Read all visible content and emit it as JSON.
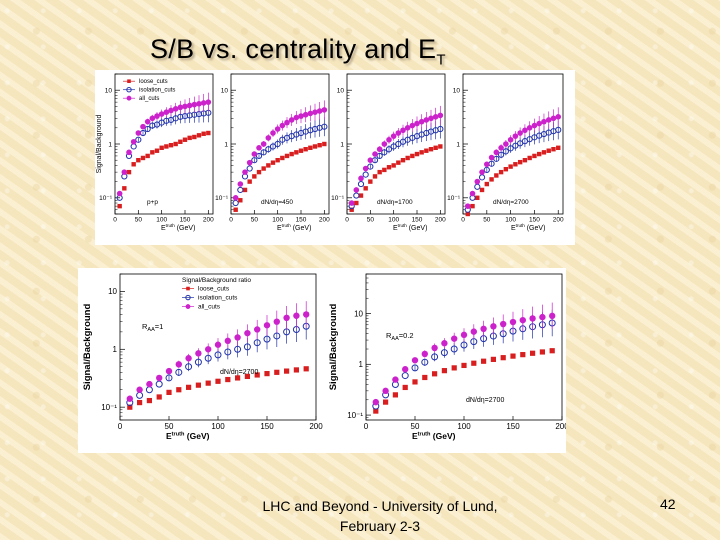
{
  "slide": {
    "title_main": "S/B vs. centrality and E",
    "title_sub": "T",
    "footer_line1": "LHC and Beyond - University of Lund,",
    "footer_line2": "February 2-3",
    "page_number": "42"
  },
  "colors": {
    "loose": "#d81e1e",
    "isolation": "#2233aa",
    "all": "#cc22cc",
    "background": "#f7e9c4"
  },
  "chart_data": [
    {
      "type": "scatter",
      "name": "pp",
      "yscale": "log",
      "ylim": [
        0.05,
        20
      ],
      "xlim": [
        0,
        210
      ],
      "ylabel": "Signal/Background",
      "xlabel_main": "E",
      "xlabel_sup": "truth",
      "xlabel_unit": "(GeV)",
      "xticks": [
        0,
        50,
        100,
        150,
        200
      ],
      "ytick_labels": [
        "10",
        "1",
        "10⁻¹"
      ],
      "annotation": "p+p",
      "legend": [
        "loose_cuts",
        "isolation_cuts",
        "all_cuts"
      ],
      "x": [
        10,
        20,
        30,
        40,
        50,
        60,
        70,
        80,
        90,
        100,
        110,
        120,
        130,
        140,
        150,
        160,
        170,
        180,
        190,
        200
      ],
      "series": [
        {
          "name": "loose_cuts",
          "values": [
            0.07,
            0.15,
            0.3,
            0.42,
            0.5,
            0.55,
            0.6,
            0.7,
            0.75,
            0.85,
            0.9,
            0.95,
            1.0,
            1.1,
            1.2,
            1.3,
            1.35,
            1.45,
            1.55,
            1.6
          ]
        },
        {
          "name": "isolation_cuts",
          "values": [
            0.1,
            0.25,
            0.6,
            0.9,
            1.2,
            1.6,
            1.9,
            2.2,
            2.3,
            2.5,
            2.7,
            2.8,
            3.0,
            3.2,
            3.3,
            3.4,
            3.5,
            3.6,
            3.7,
            3.8
          ]
        },
        {
          "name": "all_cuts",
          "values": [
            0.12,
            0.3,
            0.7,
            1.1,
            1.6,
            2.1,
            2.6,
            3.0,
            3.3,
            3.6,
            3.9,
            4.2,
            4.5,
            4.8,
            5.0,
            5.2,
            5.4,
            5.6,
            5.8,
            6.0
          ]
        }
      ]
    },
    {
      "type": "scatter",
      "name": "dNdeta450",
      "yscale": "log",
      "ylim": [
        0.05,
        20
      ],
      "xlim": [
        0,
        210
      ],
      "xlabel_main": "E",
      "xlabel_sup": "truth",
      "xlabel_unit": "(GeV)",
      "xticks": [
        0,
        50,
        100,
        150,
        200
      ],
      "ytick_labels": [
        "10",
        "1",
        "10⁻¹"
      ],
      "annotation": "dN/dη=450",
      "x": [
        10,
        20,
        30,
        40,
        50,
        60,
        70,
        80,
        90,
        100,
        110,
        120,
        130,
        140,
        150,
        160,
        170,
        180,
        190,
        200
      ],
      "series": [
        {
          "name": "loose_cuts",
          "values": [
            0.06,
            0.09,
            0.14,
            0.2,
            0.25,
            0.3,
            0.35,
            0.4,
            0.45,
            0.5,
            0.55,
            0.6,
            0.65,
            0.7,
            0.75,
            0.8,
            0.85,
            0.9,
            0.95,
            1.0
          ]
        },
        {
          "name": "isolation_cuts",
          "values": [
            0.08,
            0.14,
            0.25,
            0.35,
            0.5,
            0.6,
            0.7,
            0.8,
            0.9,
            1.0,
            1.2,
            1.3,
            1.4,
            1.5,
            1.6,
            1.7,
            1.8,
            1.9,
            2.0,
            2.1
          ]
        },
        {
          "name": "all_cuts",
          "values": [
            0.1,
            0.18,
            0.3,
            0.45,
            0.65,
            0.85,
            1.0,
            1.3,
            1.6,
            1.9,
            2.2,
            2.5,
            2.8,
            3.1,
            3.3,
            3.5,
            3.7,
            3.9,
            4.1,
            4.3
          ]
        }
      ]
    },
    {
      "type": "scatter",
      "name": "dNdeta1700",
      "yscale": "log",
      "ylim": [
        0.05,
        20
      ],
      "xlim": [
        0,
        210
      ],
      "xlabel_main": "E",
      "xlabel_sup": "truth",
      "xlabel_unit": "(GeV)",
      "xticks": [
        0,
        50,
        100,
        150,
        200
      ],
      "ytick_labels": [
        "10",
        "1",
        "10⁻¹"
      ],
      "annotation": "dN/dη=1700",
      "x": [
        10,
        20,
        30,
        40,
        50,
        60,
        70,
        80,
        90,
        100,
        110,
        120,
        130,
        140,
        150,
        160,
        170,
        180,
        190,
        200
      ],
      "series": [
        {
          "name": "loose_cuts",
          "values": [
            0.06,
            0.08,
            0.11,
            0.15,
            0.2,
            0.25,
            0.3,
            0.33,
            0.37,
            0.4,
            0.45,
            0.5,
            0.55,
            0.6,
            0.65,
            0.7,
            0.75,
            0.8,
            0.85,
            0.9
          ]
        },
        {
          "name": "isolation_cuts",
          "values": [
            0.07,
            0.11,
            0.18,
            0.27,
            0.38,
            0.5,
            0.6,
            0.7,
            0.8,
            0.9,
            1.0,
            1.1,
            1.2,
            1.3,
            1.4,
            1.5,
            1.6,
            1.7,
            1.8,
            1.9
          ]
        },
        {
          "name": "all_cuts",
          "values": [
            0.08,
            0.14,
            0.23,
            0.35,
            0.5,
            0.65,
            0.8,
            1.0,
            1.2,
            1.4,
            1.6,
            1.8,
            2.0,
            2.2,
            2.4,
            2.6,
            2.8,
            3.0,
            3.2,
            3.4
          ]
        }
      ]
    },
    {
      "type": "scatter",
      "name": "dNdeta2700",
      "yscale": "log",
      "ylim": [
        0.05,
        20
      ],
      "xlim": [
        0,
        210
      ],
      "xlabel_main": "E",
      "xlabel_sup": "truth",
      "xlabel_unit": "(GeV)",
      "xticks": [
        0,
        50,
        100,
        150,
        200
      ],
      "ytick_labels": [
        "10",
        "1",
        "10⁻¹"
      ],
      "annotation": "dN/dη=2700",
      "x": [
        10,
        20,
        30,
        40,
        50,
        60,
        70,
        80,
        90,
        100,
        110,
        120,
        130,
        140,
        150,
        160,
        170,
        180,
        190,
        200
      ],
      "series": [
        {
          "name": "loose_cuts",
          "values": [
            0.05,
            0.07,
            0.1,
            0.14,
            0.18,
            0.22,
            0.26,
            0.3,
            0.34,
            0.38,
            0.42,
            0.46,
            0.5,
            0.55,
            0.6,
            0.65,
            0.7,
            0.75,
            0.8,
            0.85
          ]
        },
        {
          "name": "isolation_cuts",
          "values": [
            0.06,
            0.1,
            0.16,
            0.24,
            0.33,
            0.43,
            0.53,
            0.63,
            0.73,
            0.83,
            0.93,
            1.03,
            1.13,
            1.23,
            1.33,
            1.43,
            1.53,
            1.63,
            1.73,
            1.83
          ]
        },
        {
          "name": "all_cuts",
          "values": [
            0.07,
            0.12,
            0.2,
            0.3,
            0.42,
            0.56,
            0.7,
            0.85,
            1.0,
            1.2,
            1.4,
            1.6,
            1.8,
            2.0,
            2.2,
            2.4,
            2.6,
            2.8,
            3.0,
            3.2
          ]
        }
      ]
    },
    {
      "type": "scatter",
      "name": "RAA1",
      "yscale": "log",
      "ylim": [
        0.06,
        20
      ],
      "xlim": [
        0,
        200
      ],
      "ylabel": "Signal/Background",
      "xlabel_main": "E",
      "xlabel_sup": "truth",
      "xlabel_unit": "(GeV)",
      "xticks": [
        0,
        50,
        100,
        150,
        200
      ],
      "ytick_labels": [
        "10",
        "1",
        "10⁻¹"
      ],
      "annotation": "R",
      "annotation_sub": "AA",
      "annotation_value": "=1",
      "annotation2": "dN/dη=2700",
      "legend_title": "Signal/Background ratio",
      "legend": [
        "loose_cuts",
        "isolation_cuts",
        "all_cuts"
      ],
      "x": [
        10,
        20,
        30,
        40,
        50,
        60,
        70,
        80,
        90,
        100,
        110,
        120,
        130,
        140,
        150,
        160,
        170,
        180,
        190
      ],
      "series": [
        {
          "name": "loose_cuts",
          "values": [
            0.1,
            0.12,
            0.13,
            0.15,
            0.18,
            0.2,
            0.22,
            0.24,
            0.26,
            0.28,
            0.3,
            0.32,
            0.34,
            0.36,
            0.38,
            0.4,
            0.42,
            0.44,
            0.46
          ]
        },
        {
          "name": "isolation_cuts",
          "values": [
            0.12,
            0.16,
            0.2,
            0.25,
            0.32,
            0.4,
            0.5,
            0.6,
            0.7,
            0.8,
            0.9,
            1.0,
            1.1,
            1.3,
            1.5,
            1.7,
            2.0,
            2.2,
            2.5
          ]
        },
        {
          "name": "all_cuts",
          "values": [
            0.14,
            0.2,
            0.25,
            0.32,
            0.42,
            0.55,
            0.7,
            0.85,
            1.0,
            1.2,
            1.4,
            1.6,
            1.9,
            2.2,
            2.6,
            3.0,
            3.5,
            3.8,
            4.0
          ]
        }
      ]
    },
    {
      "type": "scatter",
      "name": "RAA02",
      "yscale": "log",
      "ylim": [
        0.08,
        60
      ],
      "xlim": [
        0,
        200
      ],
      "ylabel": "Signal/Background",
      "xlabel_main": "E",
      "xlabel_sup": "truth",
      "xlabel_unit": "(GeV)",
      "xticks": [
        0,
        50,
        100,
        150,
        200
      ],
      "ytick_labels": [
        "10",
        "1",
        "10⁻¹"
      ],
      "annotation": "R",
      "annotation_sub": "AA",
      "annotation_value": "=0.2",
      "annotation2": "dN/dη=2700",
      "x": [
        10,
        20,
        30,
        40,
        50,
        60,
        70,
        80,
        90,
        100,
        110,
        120,
        130,
        140,
        150,
        160,
        170,
        180,
        190
      ],
      "series": [
        {
          "name": "loose_cuts",
          "values": [
            0.12,
            0.18,
            0.25,
            0.35,
            0.45,
            0.55,
            0.65,
            0.75,
            0.85,
            0.95,
            1.05,
            1.15,
            1.25,
            1.35,
            1.45,
            1.55,
            1.65,
            1.75,
            1.85
          ]
        },
        {
          "name": "isolation_cuts",
          "values": [
            0.15,
            0.25,
            0.4,
            0.6,
            0.85,
            1.1,
            1.4,
            1.7,
            2.0,
            2.4,
            2.8,
            3.2,
            3.6,
            4.0,
            4.5,
            5.0,
            5.5,
            6.0,
            6.5
          ]
        },
        {
          "name": "all_cuts",
          "values": [
            0.18,
            0.3,
            0.5,
            0.8,
            1.2,
            1.6,
            2.1,
            2.6,
            3.2,
            3.8,
            4.4,
            5.0,
            5.6,
            6.2,
            6.8,
            7.4,
            8.0,
            8.5,
            9.0
          ]
        }
      ]
    }
  ]
}
